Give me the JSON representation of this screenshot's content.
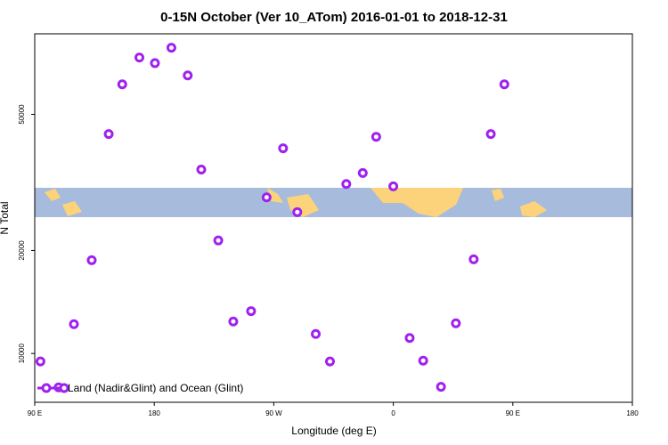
{
  "chart_data": {
    "type": "scatter",
    "title": "0-15N October (Ver 10_ATom)   2016-01-01 to 2018-12-31",
    "x_label": "Longitude (deg E)",
    "y_label": "N Total",
    "log_y": true,
    "legend": "bottom-left",
    "xlim": [
      90,
      540
    ],
    "xticks": [
      {
        "value": 90,
        "label": "90 E"
      },
      180,
      {
        "value": 270,
        "label": "90 W"
      },
      {
        "value": 360,
        "label": "0"
      },
      {
        "value": 450,
        "label": "90 E"
      },
      {
        "value": 540,
        "label": "180"
      }
    ],
    "ylim": [
      7200,
      86000
    ],
    "yticks": [
      10000,
      20000,
      50000
    ],
    "series": [
      {
        "name": "Land (Nadir&Glint) and Ocean (Glint)",
        "color": "#a020f0",
        "x": [
          94.3,
          108,
          119.5,
          132.9,
          145.7,
          155.9,
          168.8,
          180.5,
          192.9,
          205.2,
          215.4,
          228.2,
          239.5,
          252.9,
          264.6,
          277,
          287.7,
          301.6,
          312.3,
          324.6,
          337,
          347.1,
          360,
          372.3,
          382.5,
          395.9,
          407.1,
          420.5,
          433.4,
          443.6
        ],
        "values": [
          9480,
          7960,
          12180,
          18740,
          43800,
          61200,
          73300,
          70600,
          78300,
          65000,
          34500,
          21400,
          12400,
          13300,
          28600,
          39800,
          25900,
          11400,
          9480,
          31300,
          33700,
          43000,
          30800,
          11100,
          9530,
          7990,
          12250,
          18850,
          43800,
          61200
        ]
      }
    ]
  }
}
